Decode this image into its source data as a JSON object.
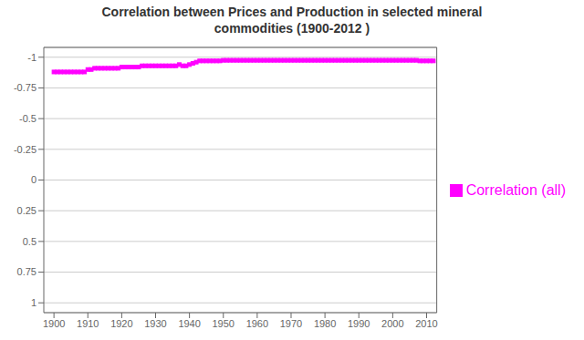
{
  "chart_data": {
    "type": "line",
    "title": "Correlation between Prices and Production in selected mineral\ncommodities (1900-2012 )",
    "x": [
      1900,
      1901,
      1902,
      1903,
      1904,
      1905,
      1906,
      1907,
      1908,
      1909,
      1910,
      1911,
      1912,
      1913,
      1914,
      1915,
      1916,
      1917,
      1918,
      1919,
      1920,
      1921,
      1922,
      1923,
      1924,
      1925,
      1926,
      1927,
      1928,
      1929,
      1930,
      1931,
      1932,
      1933,
      1934,
      1935,
      1936,
      1937,
      1938,
      1939,
      1940,
      1941,
      1942,
      1943,
      1944,
      1945,
      1946,
      1947,
      1948,
      1949,
      1950,
      1951,
      1952,
      1953,
      1954,
      1955,
      1956,
      1957,
      1958,
      1959,
      1960,
      1961,
      1962,
      1963,
      1964,
      1965,
      1966,
      1967,
      1968,
      1969,
      1970,
      1971,
      1972,
      1973,
      1974,
      1975,
      1976,
      1977,
      1978,
      1979,
      1980,
      1981,
      1982,
      1983,
      1984,
      1985,
      1986,
      1987,
      1988,
      1989,
      1990,
      1991,
      1992,
      1993,
      1994,
      1995,
      1996,
      1997,
      1998,
      1999,
      2000,
      2001,
      2002,
      2003,
      2004,
      2005,
      2006,
      2007,
      2008,
      2009,
      2010,
      2011,
      2012
    ],
    "series": [
      {
        "name": "Correlation (all)",
        "color": "#FF00FF",
        "marker": "square",
        "values": [
          -0.88,
          -0.88,
          -0.88,
          -0.88,
          -0.88,
          -0.88,
          -0.88,
          -0.88,
          -0.88,
          -0.88,
          -0.9,
          -0.9,
          -0.91,
          -0.91,
          -0.91,
          -0.91,
          -0.91,
          -0.91,
          -0.91,
          -0.91,
          -0.92,
          -0.92,
          -0.92,
          -0.92,
          -0.92,
          -0.92,
          -0.93,
          -0.93,
          -0.93,
          -0.93,
          -0.93,
          -0.93,
          -0.93,
          -0.93,
          -0.93,
          -0.93,
          -0.93,
          -0.94,
          -0.93,
          -0.93,
          -0.94,
          -0.95,
          -0.96,
          -0.97,
          -0.97,
          -0.97,
          -0.97,
          -0.97,
          -0.97,
          -0.97,
          -0.975,
          -0.975,
          -0.975,
          -0.975,
          -0.975,
          -0.975,
          -0.975,
          -0.975,
          -0.975,
          -0.975,
          -0.975,
          -0.975,
          -0.975,
          -0.975,
          -0.975,
          -0.975,
          -0.975,
          -0.975,
          -0.975,
          -0.975,
          -0.975,
          -0.975,
          -0.975,
          -0.975,
          -0.975,
          -0.975,
          -0.975,
          -0.975,
          -0.975,
          -0.975,
          -0.975,
          -0.975,
          -0.975,
          -0.975,
          -0.975,
          -0.975,
          -0.975,
          -0.975,
          -0.975,
          -0.975,
          -0.975,
          -0.975,
          -0.975,
          -0.975,
          -0.975,
          -0.975,
          -0.975,
          -0.975,
          -0.975,
          -0.975,
          -0.975,
          -0.975,
          -0.975,
          -0.975,
          -0.975,
          -0.975,
          -0.975,
          -0.975,
          -0.97,
          -0.97,
          -0.97,
          -0.97,
          -0.97
        ]
      }
    ],
    "xlim": [
      1897,
      2013
    ],
    "xticks": [
      1900,
      1910,
      1920,
      1930,
      1940,
      1950,
      1960,
      1970,
      1980,
      1990,
      2000,
      2010
    ],
    "ylim": [
      1.08,
      -1.08
    ],
    "yticks": [
      -1,
      -0.75,
      -0.5,
      -0.25,
      0,
      0.25,
      0.5,
      0.75,
      1
    ],
    "grid": true,
    "legend": "right"
  }
}
